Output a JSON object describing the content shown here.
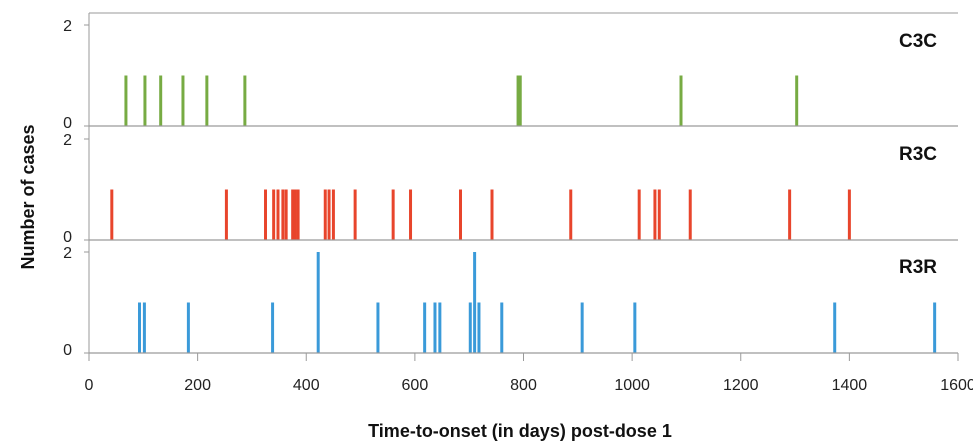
{
  "chart_data": {
    "type": "bar",
    "title": "",
    "xlabel": "Time-to-onset (in days) post-dose 1",
    "ylabel": "Number of cases",
    "xlim": [
      0,
      1600
    ],
    "ylim": [
      0,
      2
    ],
    "x_ticks": [
      "0",
      "200",
      "400",
      "600",
      "800",
      "1000",
      "1200",
      "1400",
      "1600"
    ],
    "y_ticks": [
      "0",
      "2"
    ],
    "grid": false,
    "panels": [
      {
        "name": "C3C",
        "color": "#77ab43",
        "points": [
          {
            "x": 68,
            "y": 1
          },
          {
            "x": 103,
            "y": 1
          },
          {
            "x": 132,
            "y": 1
          },
          {
            "x": 173,
            "y": 1
          },
          {
            "x": 217,
            "y": 1
          },
          {
            "x": 287,
            "y": 1
          },
          {
            "x": 790,
            "y": 1
          },
          {
            "x": 794,
            "y": 1
          },
          {
            "x": 1090,
            "y": 1
          },
          {
            "x": 1303,
            "y": 1
          }
        ]
      },
      {
        "name": "R3C",
        "color": "#e8452c",
        "points": [
          {
            "x": 42,
            "y": 1
          },
          {
            "x": 253,
            "y": 1
          },
          {
            "x": 325,
            "y": 1
          },
          {
            "x": 340,
            "y": 1
          },
          {
            "x": 348,
            "y": 1
          },
          {
            "x": 357,
            "y": 1
          },
          {
            "x": 363,
            "y": 1
          },
          {
            "x": 375,
            "y": 1
          },
          {
            "x": 380,
            "y": 1
          },
          {
            "x": 385,
            "y": 1
          },
          {
            "x": 435,
            "y": 1
          },
          {
            "x": 442,
            "y": 1
          },
          {
            "x": 450,
            "y": 1
          },
          {
            "x": 490,
            "y": 1
          },
          {
            "x": 560,
            "y": 1
          },
          {
            "x": 592,
            "y": 1
          },
          {
            "x": 684,
            "y": 1
          },
          {
            "x": 742,
            "y": 1
          },
          {
            "x": 887,
            "y": 1
          },
          {
            "x": 1013,
            "y": 1
          },
          {
            "x": 1042,
            "y": 1
          },
          {
            "x": 1050,
            "y": 1
          },
          {
            "x": 1107,
            "y": 1
          },
          {
            "x": 1290,
            "y": 1
          },
          {
            "x": 1400,
            "y": 1
          }
        ]
      },
      {
        "name": "R3R",
        "color": "#3a9ad9",
        "points": [
          {
            "x": 93,
            "y": 1
          },
          {
            "x": 102,
            "y": 1
          },
          {
            "x": 183,
            "y": 1
          },
          {
            "x": 338,
            "y": 1
          },
          {
            "x": 422,
            "y": 2
          },
          {
            "x": 532,
            "y": 1
          },
          {
            "x": 618,
            "y": 1
          },
          {
            "x": 637,
            "y": 1
          },
          {
            "x": 646,
            "y": 1
          },
          {
            "x": 702,
            "y": 1
          },
          {
            "x": 710,
            "y": 2
          },
          {
            "x": 718,
            "y": 1
          },
          {
            "x": 760,
            "y": 1
          },
          {
            "x": 908,
            "y": 1
          },
          {
            "x": 1005,
            "y": 1
          },
          {
            "x": 1373,
            "y": 1
          },
          {
            "x": 1557,
            "y": 1
          }
        ]
      }
    ]
  }
}
